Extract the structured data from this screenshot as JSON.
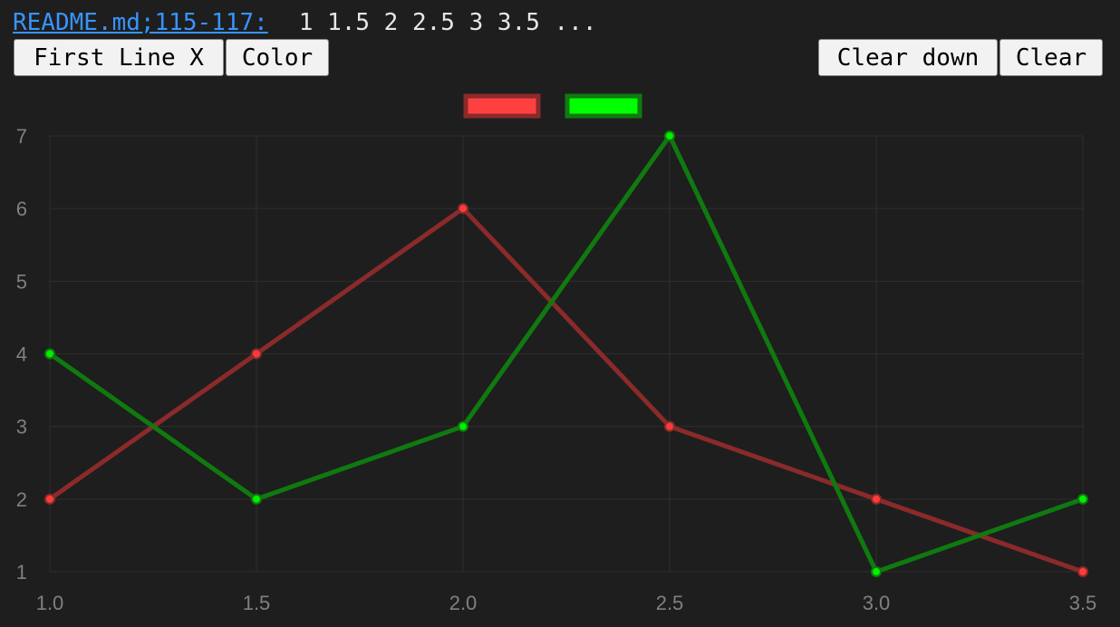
{
  "header": {
    "source_link": "README.md;115-117:",
    "x_values_text": "1 1.5 2 2.5 3 3.5 ..."
  },
  "toolbar": {
    "first_line_x_label": "First Line X",
    "color_label": "Color",
    "clear_down_label": "Clear down",
    "clear_label": "Clear"
  },
  "chart_data": {
    "type": "line",
    "x": [
      1.0,
      1.5,
      2.0,
      2.5,
      3.0,
      3.5
    ],
    "x_tick_labels": [
      "1.0",
      "1.5",
      "2.0",
      "2.5",
      "3.0",
      "3.5"
    ],
    "y_tick_labels": [
      "1",
      "2",
      "3",
      "4",
      "5",
      "6",
      "7"
    ],
    "xlim": [
      1.0,
      3.5
    ],
    "ylim": [
      1,
      7
    ],
    "grid": true,
    "legend_position": "top-center",
    "series": [
      {
        "values": [
          2,
          4,
          6,
          3,
          2,
          1
        ],
        "line_color": "#8b2a2a",
        "point_color": "#ff3b3b",
        "legend_fill": "#ff4040",
        "legend_border": "#8b2a2a"
      },
      {
        "values": [
          4,
          2,
          3,
          7,
          1,
          2
        ],
        "line_color": "#0f7a0f",
        "point_color": "#00ee00",
        "legend_fill": "#00ff00",
        "legend_border": "#0f7a0f"
      }
    ],
    "colors": {
      "background": "#1e1e1e",
      "grid": "#2e2e2e",
      "tick_text": "#808080"
    }
  }
}
